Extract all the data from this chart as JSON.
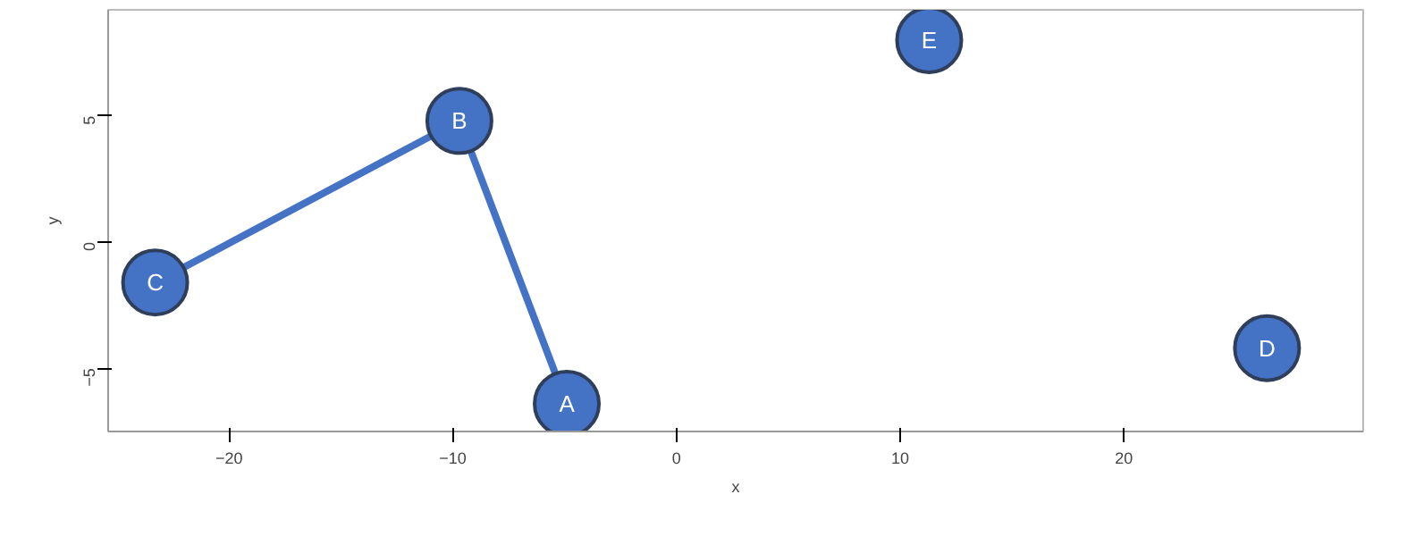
{
  "chart_data": {
    "type": "scatter",
    "xlabel": "x",
    "ylabel": "y",
    "series": [
      {
        "type": "line",
        "color": "#4472c4",
        "x": [
          -23.3,
          -9.7,
          -4.9
        ],
        "values": [
          -1.6,
          4.8,
          -6.4
        ],
        "marker": "none"
      },
      {
        "color": "#4472c4",
        "x": [
          -4.9,
          -9.7,
          -23.3,
          26.4,
          11.3
        ],
        "values": [
          -6.4,
          4.8,
          -1.6,
          -4.2,
          8.0
        ],
        "value_labels": [
          "A",
          "B",
          "C",
          "D",
          "E"
        ],
        "marker": "circle"
      }
    ],
    "xlim": [
      -25.4,
      30.7
    ],
    "ylim": [
      -7.5,
      9.2
    ],
    "xticks": [
      -20,
      -10,
      0,
      10,
      20
    ],
    "yticks": [
      -5,
      0,
      5
    ],
    "grid": false
  }
}
